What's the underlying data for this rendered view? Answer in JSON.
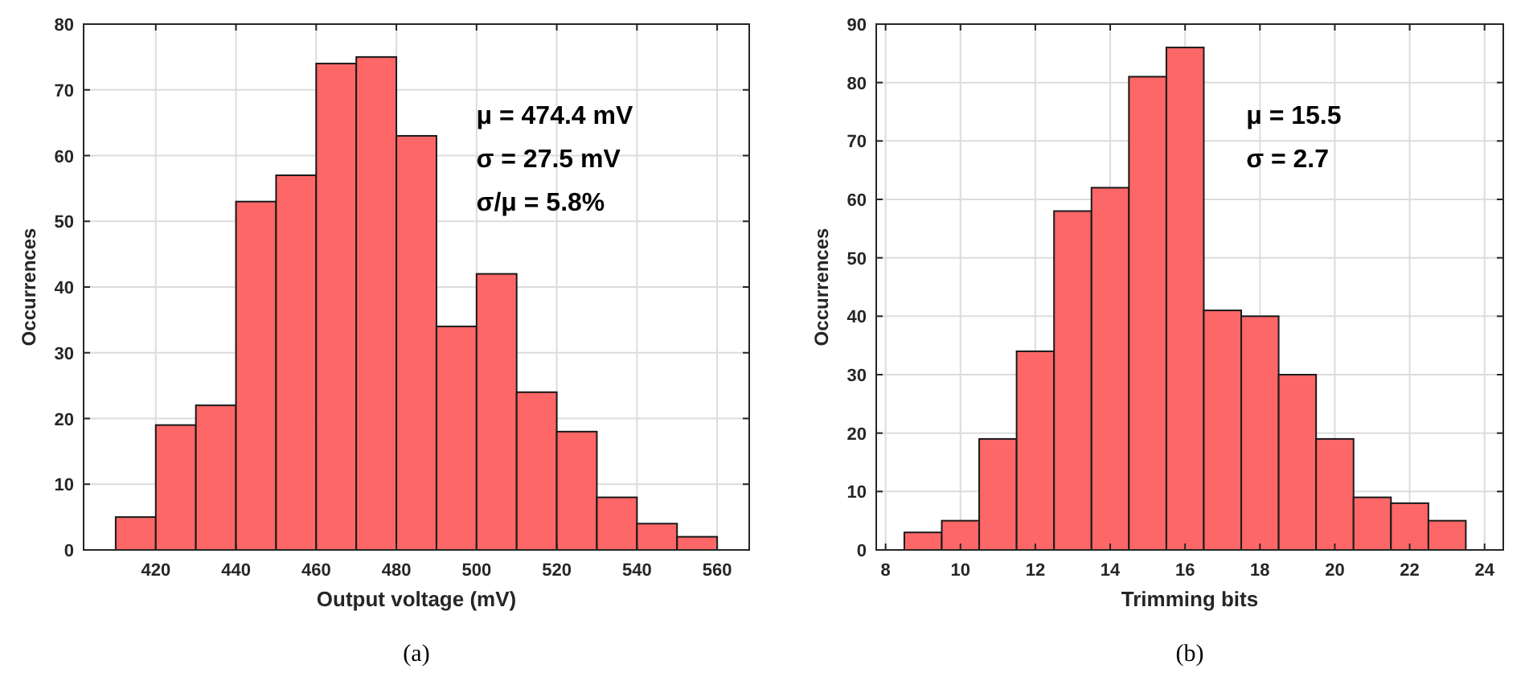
{
  "chart_data": [
    {
      "type": "histogram",
      "xlabel": "Output voltage (mV)",
      "ylabel": "Occurrences",
      "bins": [
        410,
        420,
        430,
        440,
        450,
        460,
        470,
        480,
        490,
        500,
        510,
        520,
        530,
        540,
        550,
        560
      ],
      "values": [
        5,
        19,
        22,
        53,
        57,
        74,
        75,
        63,
        34,
        42,
        24,
        18,
        8,
        4,
        2
      ],
      "color": "#fe6464",
      "xlim": [
        402,
        568
      ],
      "xticks": [
        420,
        440,
        460,
        480,
        500,
        520,
        540,
        560
      ],
      "ylim": [
        0,
        80
      ],
      "yticks": [
        0,
        10,
        20,
        30,
        40,
        50,
        60,
        70,
        80
      ],
      "grid": true,
      "annotations": [
        "μ = 474.4 mV",
        "σ = 27.5 mV",
        "σ/μ = 5.8%",
        "(a)"
      ]
    },
    {
      "type": "histogram",
      "xlabel": "Trimming bits",
      "ylabel": "Occurrences",
      "bins": [
        8.5,
        9.5,
        10.5,
        11.5,
        12.5,
        13.5,
        14.5,
        15.5,
        16.5,
        17.5,
        18.5,
        19.5,
        20.5,
        21.5,
        22.5,
        23.5
      ],
      "values": [
        3,
        5,
        19,
        34,
        58,
        62,
        81,
        86,
        41,
        40,
        30,
        19,
        9,
        8,
        5
      ],
      "color": "#fe6464",
      "xlim": [
        7.75,
        24.5
      ],
      "xticks": [
        8,
        10,
        12,
        14,
        16,
        18,
        20,
        22,
        24
      ],
      "ylim": [
        0,
        90
      ],
      "yticks": [
        0,
        10,
        20,
        30,
        40,
        50,
        60,
        70,
        80,
        90
      ],
      "grid": true,
      "annotations": [
        "μ = 15.5",
        "σ = 2.7",
        "(b)"
      ]
    }
  ]
}
